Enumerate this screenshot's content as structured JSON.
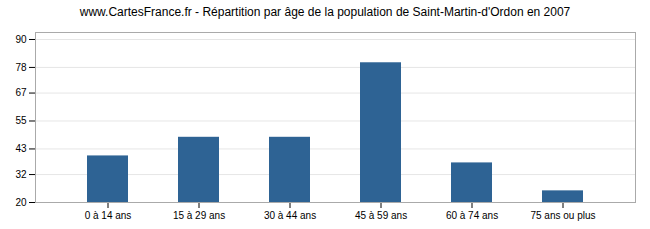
{
  "chart_data": {
    "type": "bar",
    "title": "www.CartesFrance.fr - Répartition par âge de la population de Saint-Martin-d'Ordon en 2007",
    "categories": [
      "0 à 14 ans",
      "15 à 29 ans",
      "30 à 44 ans",
      "45 à 59 ans",
      "60 à 74 ans",
      "75 ans ou plus"
    ],
    "values": [
      40,
      48,
      48,
      80,
      37,
      25
    ],
    "color": "#2e6394",
    "ylim": [
      20,
      93
    ],
    "yticks": [
      20,
      32,
      43,
      55,
      67,
      78,
      90
    ],
    "grid": true
  }
}
